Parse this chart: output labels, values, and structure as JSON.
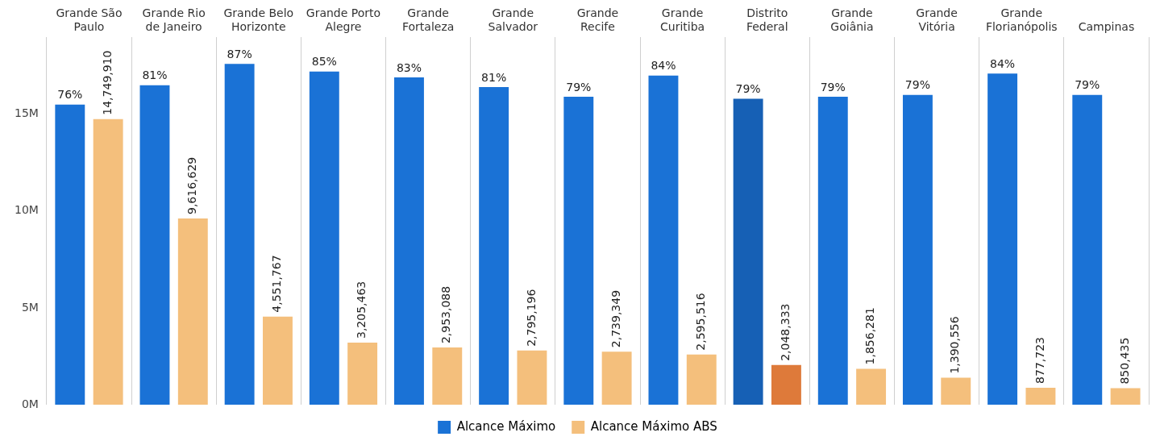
{
  "chart_data": {
    "type": "bar",
    "categories": [
      "Grande São Paulo",
      "Grande Rio de Janeiro",
      "Grande Belo Horizonte",
      "Grande Porto Alegre",
      "Grande Fortaleza",
      "Grande Salvador",
      "Grande Recife",
      "Grande Curitiba",
      "Distrito Federal",
      "Grande Goiânia",
      "Grande Vitória",
      "Grande Florianópolis",
      "Campinas"
    ],
    "series": [
      {
        "name": "Alcance Máximo",
        "color": "#1a72d6",
        "colors": [
          "#1a72d6",
          "#1a72d6",
          "#1a72d6",
          "#1a72d6",
          "#1a72d6",
          "#1a72d6",
          "#1a72d6",
          "#1a72d6",
          "#1660b5",
          "#1a72d6",
          "#1a72d6",
          "#1a72d6",
          "#1a72d6"
        ],
        "values": [
          15500000,
          16500000,
          17600000,
          17200000,
          16900000,
          16400000,
          15900000,
          17000000,
          15800000,
          15900000,
          16000000,
          17100000,
          16000000
        ]
      },
      {
        "name": "Alcance Máximo ABS",
        "color": "#f4bf7c",
        "colors": [
          "#f4bf7c",
          "#f4bf7c",
          "#f4bf7c",
          "#f4bf7c",
          "#f4bf7c",
          "#f4bf7c",
          "#f4bf7c",
          "#f4bf7c",
          "#de7a3a",
          "#f4bf7c",
          "#f4bf7c",
          "#f4bf7c",
          "#f4bf7c"
        ],
        "values": [
          14749910,
          9616629,
          4551767,
          3205463,
          2953088,
          2795196,
          2739349,
          2595516,
          2048333,
          1856281,
          1390556,
          877723,
          850435
        ],
        "value_labels": [
          "14,749,910",
          "9,616,629",
          "4,551,767",
          "3,205,463",
          "2,953,088",
          "2,795,196",
          "2,739,349",
          "2,595,516",
          "2,048,333",
          "1,856,281",
          "1,390,556",
          "877,723",
          "850,435"
        ]
      }
    ],
    "annotations": [
      "76%",
      "81%",
      "87%",
      "85%",
      "83%",
      "81%",
      "79%",
      "84%",
      "79%",
      "79%",
      "79%",
      "84%",
      "79%"
    ],
    "ylim": [
      0,
      19000000
    ],
    "yticks": [
      {
        "value": 0,
        "label": "0M"
      },
      {
        "value": 5000000,
        "label": "5M"
      },
      {
        "value": 10000000,
        "label": "10M"
      },
      {
        "value": 15000000,
        "label": "15M"
      }
    ],
    "grid": "x",
    "legend": "bottom"
  }
}
